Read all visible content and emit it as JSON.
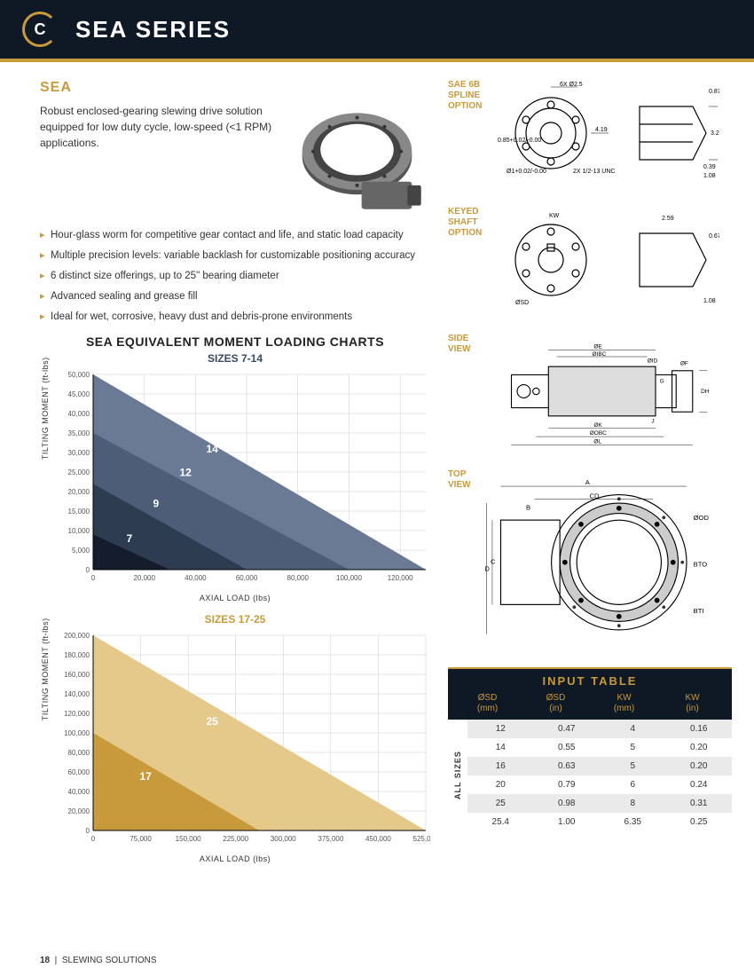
{
  "header": {
    "logo_text": "C",
    "title": "SEA SERIES"
  },
  "section": {
    "title": "SEA",
    "description": "Robust enclosed-gearing slewing drive solution equipped for low duty cycle, low-speed (<1 RPM) applications.",
    "bullets": [
      "Hour-glass worm for competitive gear contact and life, and static load capacity",
      "Multiple precision levels: variable backlash for customizable positioning accuracy",
      "6 distinct size offerings, up to 25\" bearing diameter",
      "Advanced sealing and grease fill",
      "Ideal for wet, corrosive, heavy dust and debris-prone environments"
    ]
  },
  "charts": {
    "mega_title": "SEA EQUIVALENT MOMENT LOADING CHARTS",
    "ylabel": "TILTING MOMENT (ft-lbs)",
    "xlabel": "AXIAL LOAD (lbs)",
    "chart1": {
      "subtitle": "SIZES 7-14",
      "title_color": "#3a4a63",
      "xmax": 130000,
      "xtick": 20000,
      "ymax": 50000,
      "ytick": 5000,
      "grid_color": "#cccccc",
      "series": [
        {
          "label": "14",
          "y0": 50000,
          "x0": 130000,
          "color": "#6b7a94",
          "lx": 0.34,
          "ly": 0.4
        },
        {
          "label": "12",
          "y0": 35000,
          "x0": 100000,
          "color": "#4d5d78",
          "lx": 0.26,
          "ly": 0.52
        },
        {
          "label": "9",
          "y0": 22000,
          "x0": 60000,
          "color": "#2e3c52",
          "lx": 0.18,
          "ly": 0.68
        },
        {
          "label": "7",
          "y0": 9000,
          "x0": 30000,
          "color": "#151d2c",
          "lx": 0.1,
          "ly": 0.86
        }
      ]
    },
    "chart2": {
      "subtitle": "SIZES 17-25",
      "title_color": "#c99a3c",
      "xmax": 525000,
      "xtick": 75000,
      "ymax": 200000,
      "ytick": 20000,
      "grid_color": "#cccccc",
      "series": [
        {
          "label": "25",
          "y0": 200000,
          "x0": 525000,
          "color": "#e5c98a",
          "lx": 0.34,
          "ly": 0.46
        },
        {
          "label": "17",
          "y0": 100000,
          "x0": 262000,
          "color": "#c99a3c",
          "lx": 0.14,
          "ly": 0.74
        }
      ]
    }
  },
  "diagrams": {
    "d1": "SAE 6B\nSPLINE\nOPTION",
    "d2": "KEYED\nSHAFT\nOPTION",
    "d3": "SIDE\nVIEW",
    "d4": "TOP\nVIEW"
  },
  "input_table": {
    "title": "INPUT TABLE",
    "side_label": "ALL SIZES",
    "columns": [
      {
        "h1": "ØSD",
        "h2": "(mm)"
      },
      {
        "h1": "ØSD",
        "h2": "(in)"
      },
      {
        "h1": "KW",
        "h2": "(mm)"
      },
      {
        "h1": "KW",
        "h2": "(in)"
      }
    ],
    "rows": [
      [
        "12",
        "0.47",
        "4",
        "0.16"
      ],
      [
        "14",
        "0.55",
        "5",
        "0.20"
      ],
      [
        "16",
        "0.63",
        "5",
        "0.20"
      ],
      [
        "20",
        "0.79",
        "6",
        "0.24"
      ],
      [
        "25",
        "0.98",
        "8",
        "0.31"
      ],
      [
        "25.4",
        "1.00",
        "6.35",
        "0.25"
      ]
    ]
  },
  "footer": {
    "page": "18",
    "label": "SLEWING SOLUTIONS"
  }
}
